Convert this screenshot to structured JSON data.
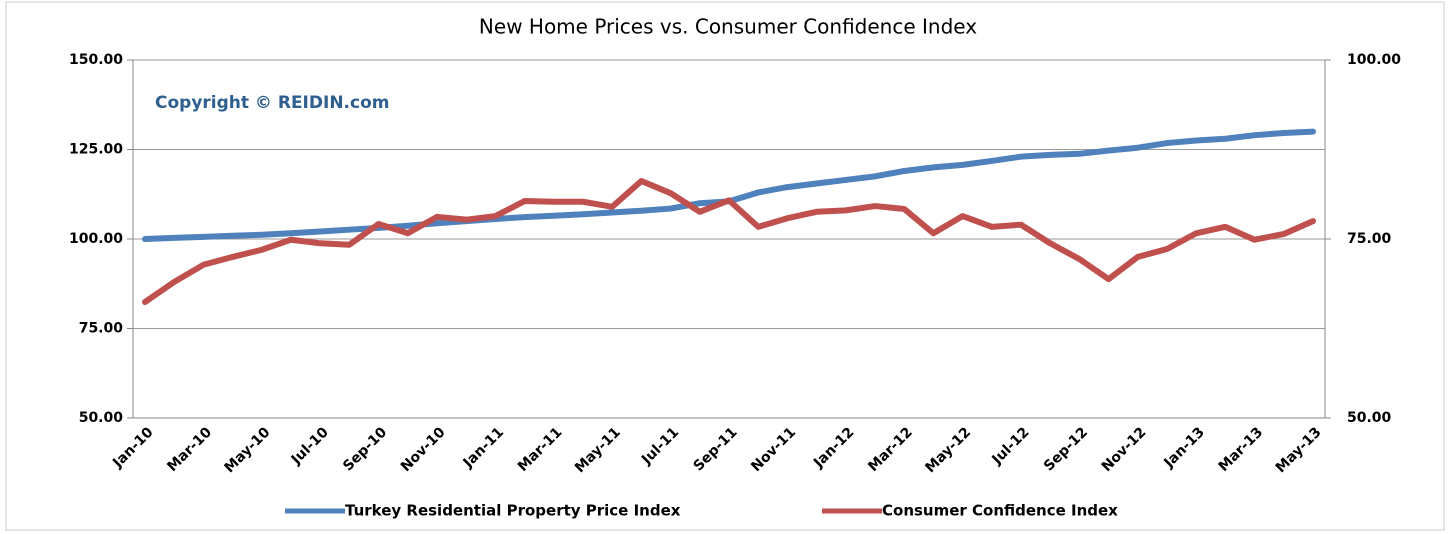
{
  "chart_data": {
    "type": "line",
    "title": "New Home Prices vs. Consumer Confidence Index",
    "annotation": "Copyright © REIDIN.com",
    "categories": [
      "Jan-10",
      null,
      "Mar-10",
      null,
      "May-10",
      null,
      "Jul-10",
      null,
      "Sep-10",
      null,
      "Nov-10",
      null,
      "Jan-11",
      null,
      "Mar-11",
      null,
      "May-11",
      null,
      "Jul-11",
      null,
      "Sep-11",
      null,
      "Nov-11",
      null,
      "Jan-12",
      null,
      "Mar-12",
      null,
      "May-12",
      null,
      "Jul-12",
      null,
      "Sep-12",
      null,
      "Nov-12",
      null,
      "Jan-13",
      null,
      "Mar-13",
      null,
      "May-13"
    ],
    "series": [
      {
        "name": "Turkey Residential Property Price Index",
        "color": "#4f81bd",
        "axis": "y",
        "values": [
          100,
          100.3,
          100.6,
          100.9,
          101.2,
          101.6,
          102.1,
          102.6,
          103.1,
          103.7,
          104.4,
          105,
          105.6,
          106.1,
          106.5,
          106.9,
          107.4,
          107.9,
          108.5,
          110,
          110.5,
          113,
          114.5,
          115.5,
          116.5,
          117.5,
          119,
          120,
          120.7,
          121.8,
          123,
          123.5,
          123.8,
          124.7,
          125.5,
          126.8,
          127.5,
          128,
          129,
          129.6,
          130
        ]
      },
      {
        "name": "Consumer Confidence Index",
        "color": "#c0504d",
        "axis": "y2",
        "values": [
          66.2,
          69,
          71.4,
          72.5,
          73.5,
          74.9,
          74.4,
          74.2,
          77.1,
          75.8,
          78.1,
          77.7,
          78.2,
          80.3,
          80.2,
          80.2,
          79.5,
          83.1,
          81.4,
          78.8,
          80.4,
          76.7,
          77.9,
          78.8,
          79,
          79.6,
          79.2,
          75.8,
          78.2,
          76.7,
          77,
          74.4,
          72.2,
          69.4,
          72.5,
          73.6,
          75.8,
          76.7,
          74.9,
          75.7,
          77.5
        ]
      }
    ],
    "ylim": [
      50,
      150
    ],
    "yticks": [
      {
        "value": 50,
        "label": "50.00"
      },
      {
        "value": 75,
        "label": "75.00"
      },
      {
        "value": 100,
        "label": "100.00"
      },
      {
        "value": 125,
        "label": "125.00"
      },
      {
        "value": 150,
        "label": "150.00"
      }
    ],
    "y2lim": [
      50,
      100
    ],
    "y2ticks": [
      {
        "value": 50,
        "label": "50.00"
      },
      {
        "value": 75,
        "label": "75.00"
      },
      {
        "value": 100,
        "label": "100.00"
      }
    ],
    "grid": true,
    "legend": "bottom"
  }
}
